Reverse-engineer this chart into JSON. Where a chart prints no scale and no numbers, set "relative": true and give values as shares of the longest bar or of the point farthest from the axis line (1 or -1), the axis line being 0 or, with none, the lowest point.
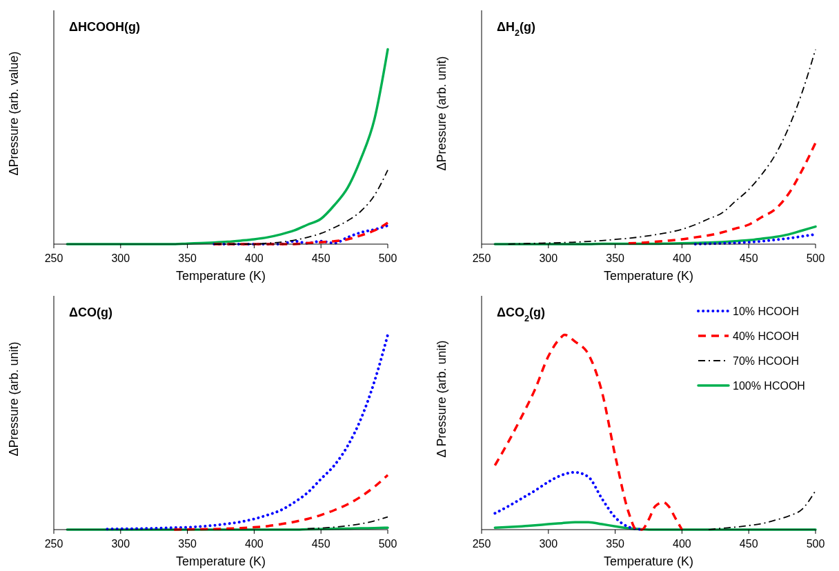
{
  "chart_data": [
    {
      "type": "line",
      "title": "ΔHCOOH(g)",
      "xlabel": "Temperature (K)",
      "ylabel": "ΔPressure (arb. value)",
      "relative": true,
      "xlim": [
        250,
        500
      ],
      "xticks": [
        250,
        300,
        350,
        400,
        450,
        500
      ],
      "x": [
        260,
        270,
        280,
        290,
        300,
        310,
        320,
        330,
        340,
        350,
        360,
        370,
        380,
        390,
        400,
        410,
        420,
        430,
        440,
        450,
        460,
        470,
        480,
        490,
        500
      ],
      "series": [
        {
          "color": "#0000ff",
          "line_style": "dotted",
          "values": [
            null,
            null,
            null,
            null,
            null,
            null,
            null,
            null,
            null,
            null,
            null,
            0,
            0,
            0,
            0,
            0,
            0,
            0.015,
            0.005,
            0.015,
            0.005,
            0.035,
            0.06,
            0.075,
            0.095
          ]
        },
        {
          "color": "#ff0000",
          "line_style": "dashed",
          "values": [
            null,
            null,
            null,
            null,
            null,
            null,
            null,
            null,
            null,
            null,
            null,
            0,
            0,
            0,
            0,
            0,
            0,
            0,
            0.005,
            0.01,
            0.015,
            0.025,
            0.045,
            0.07,
            0.11
          ]
        },
        {
          "color": "#000000",
          "line_style": "dashdot",
          "values": [
            null,
            null,
            null,
            null,
            null,
            null,
            null,
            null,
            null,
            null,
            null,
            0,
            0,
            0,
            0,
            0.005,
            0.01,
            0.02,
            0.035,
            0.055,
            0.085,
            0.12,
            0.17,
            0.25,
            0.38
          ]
        },
        {
          "color": "#00b050",
          "line_style": "solid",
          "values": [
            0,
            0,
            0,
            0,
            0,
            0,
            0,
            0,
            0,
            0.003,
            0.005,
            0.008,
            0.012,
            0.018,
            0.025,
            0.035,
            0.05,
            0.07,
            0.1,
            0.13,
            0.2,
            0.29,
            0.44,
            0.64,
            1
          ]
        }
      ]
    },
    {
      "type": "line",
      "title": "ΔH$_{2}$(g)",
      "xlabel": "Temperature (K)",
      "ylabel": "ΔPressure (arb. unit)",
      "relative": true,
      "xlim": [
        250,
        500
      ],
      "xticks": [
        250,
        300,
        350,
        400,
        450,
        500
      ],
      "x": [
        260,
        270,
        280,
        290,
        300,
        310,
        320,
        330,
        340,
        350,
        360,
        370,
        380,
        390,
        400,
        410,
        420,
        430,
        440,
        450,
        460,
        470,
        480,
        490,
        500
      ],
      "series": [
        {
          "color": "#0000ff",
          "line_style": "dotted",
          "values": [
            null,
            null,
            null,
            null,
            null,
            null,
            null,
            null,
            null,
            null,
            null,
            null,
            null,
            null,
            null,
            0,
            0.002,
            0.004,
            0.006,
            0.01,
            0.015,
            0.022,
            0.03,
            0.04,
            0.05
          ]
        },
        {
          "color": "#ff0000",
          "line_style": "dashed",
          "values": [
            null,
            null,
            null,
            null,
            null,
            null,
            null,
            null,
            null,
            null,
            0.004,
            0.007,
            0.012,
            0.018,
            0.025,
            0.035,
            0.045,
            0.06,
            0.08,
            0.1,
            0.14,
            0.18,
            0.26,
            0.38,
            0.52
          ]
        },
        {
          "color": "#000000",
          "line_style": "dashdot",
          "values": [
            null,
            0,
            0.002,
            0.004,
            0.006,
            0.008,
            0.01,
            0.014,
            0.018,
            0.024,
            0.03,
            0.038,
            0.048,
            0.06,
            0.076,
            0.1,
            0.13,
            0.16,
            0.22,
            0.28,
            0.36,
            0.46,
            0.6,
            0.78,
            1
          ]
        },
        {
          "color": "#00b050",
          "line_style": "solid",
          "values": [
            0,
            0,
            0,
            0,
            0,
            0,
            0,
            0,
            0.002,
            0.002,
            0.002,
            0.002,
            0.002,
            0.003,
            0.004,
            0.006,
            0.008,
            0.011,
            0.015,
            0.02,
            0.028,
            0.037,
            0.05,
            0.07,
            0.09
          ]
        }
      ]
    },
    {
      "type": "line",
      "title": "ΔCO(g)",
      "xlabel": "Temperature (K)",
      "ylabel": "ΔPressure (arb. unit)",
      "relative": true,
      "xlim": [
        250,
        500
      ],
      "xticks": [
        250,
        300,
        350,
        400,
        450,
        500
      ],
      "x": [
        260,
        270,
        280,
        290,
        300,
        310,
        320,
        330,
        340,
        350,
        360,
        370,
        380,
        390,
        400,
        410,
        420,
        430,
        440,
        450,
        460,
        470,
        480,
        490,
        500
      ],
      "series": [
        {
          "color": "#0000ff",
          "line_style": "dotted",
          "values": [
            null,
            null,
            null,
            0.003,
            0.004,
            0.005,
            0.006,
            0.008,
            0.01,
            0.012,
            0.016,
            0.022,
            0.03,
            0.04,
            0.055,
            0.075,
            0.1,
            0.14,
            0.19,
            0.26,
            0.33,
            0.43,
            0.57,
            0.76,
            1
          ]
        },
        {
          "color": "#ff0000",
          "line_style": "dashed",
          "values": [
            null,
            null,
            null,
            null,
            null,
            null,
            null,
            null,
            0,
            0.001,
            0.002,
            0.003,
            0.005,
            0.008,
            0.012,
            0.018,
            0.028,
            0.04,
            0.055,
            0.075,
            0.1,
            0.13,
            0.17,
            0.22,
            0.28
          ]
        },
        {
          "color": "#000000",
          "line_style": "dashdot",
          "values": [
            null,
            null,
            null,
            null,
            null,
            null,
            null,
            null,
            null,
            null,
            null,
            null,
            null,
            null,
            null,
            null,
            null,
            null,
            0.005,
            0.008,
            0.013,
            0.02,
            0.03,
            0.045,
            0.065
          ]
        },
        {
          "color": "#00b050",
          "line_style": "solid",
          "values": [
            0,
            0,
            0,
            0,
            0,
            0,
            0,
            0,
            0,
            0,
            0,
            0,
            0,
            0,
            0,
            0,
            0,
            0,
            0.002,
            0.003,
            0.004,
            0.005,
            0.007,
            0.008,
            0.01
          ]
        }
      ]
    },
    {
      "type": "line",
      "title": "ΔCO$_{2}$(g)",
      "xlabel": "Temperature (K)",
      "ylabel": "Δ Pressure (arb. unit)",
      "relative": true,
      "xlim": [
        250,
        500
      ],
      "xticks": [
        250,
        300,
        350,
        400,
        450,
        500
      ],
      "legend": "top right",
      "x": [
        260,
        270,
        280,
        290,
        300,
        310,
        320,
        330,
        340,
        350,
        360,
        370,
        380,
        390,
        400,
        410,
        420,
        430,
        440,
        450,
        460,
        470,
        480,
        490,
        500
      ],
      "series": [
        {
          "name": "10% HCOOH",
          "color": "#0000ff",
          "line_style": "dotted",
          "values": [
            0.084,
            0.12,
            0.16,
            0.2,
            0.245,
            0.28,
            0.294,
            0.27,
            0.16,
            0.063,
            0.014,
            0,
            null,
            null,
            null,
            null,
            null,
            null,
            null,
            null,
            null,
            null,
            null,
            null,
            null
          ]
        },
        {
          "name": "40% HCOOH",
          "color": "#ff0000",
          "line_style": "dashed",
          "x": [
            260,
            270,
            280,
            290,
            300,
            310,
            312,
            320,
            330,
            340,
            350,
            360,
            366,
            370,
            375,
            380,
            386,
            390,
            395,
            400
          ],
          "values": [
            0.33,
            0.45,
            0.58,
            0.72,
            0.89,
            0.99,
            1,
            0.965,
            0.9,
            0.71,
            0.38,
            0.09,
            0,
            0,
            0.05,
            0.12,
            0.14,
            0.12,
            0.06,
            0
          ]
        },
        {
          "name": "70% HCOOH",
          "color": "#000000",
          "line_style": "dashdot",
          "values": [
            null,
            null,
            null,
            null,
            null,
            null,
            null,
            null,
            null,
            null,
            null,
            null,
            null,
            null,
            null,
            null,
            0,
            0.007,
            0.013,
            0.021,
            0.031,
            0.049,
            0.07,
            0.105,
            0.2
          ]
        },
        {
          "name": "100% HCOOH",
          "color": "#00b050",
          "line_style": "solid",
          "values": [
            0.01,
            0.013,
            0.017,
            0.022,
            0.028,
            0.033,
            0.038,
            0.038,
            0.028,
            0.017,
            0.007,
            0.002,
            0,
            0,
            0,
            0,
            0,
            0,
            0,
            0,
            0,
            0,
            0,
            0,
            0
          ]
        }
      ]
    }
  ]
}
